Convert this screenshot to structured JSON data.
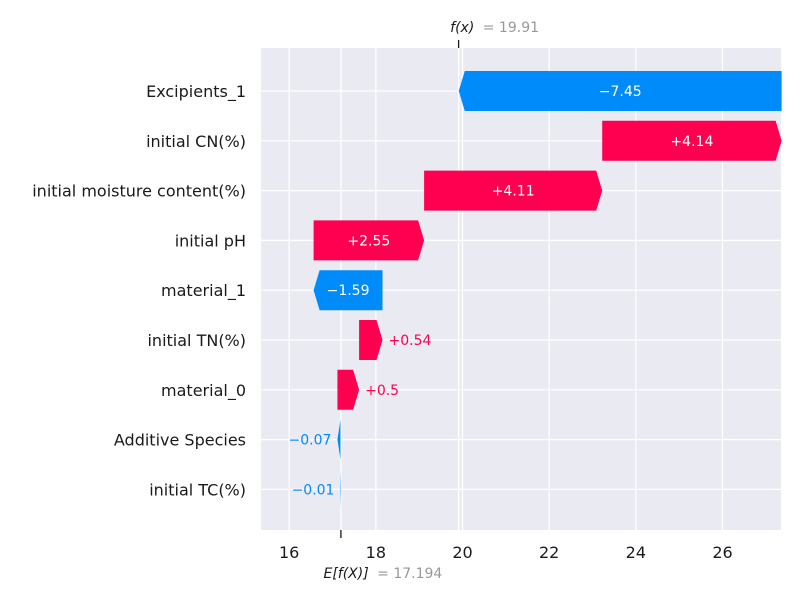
{
  "chart_data": {
    "type": "waterfall",
    "x_ticks": [
      16,
      18,
      20,
      22,
      24,
      26
    ],
    "xlim": [
      15.35,
      27.35
    ],
    "base_value": 17.194,
    "output_value": 19.91,
    "base_label": "E[f(X)]",
    "base_value_text": "= 17.194",
    "output_label": "f(x)",
    "output_value_text": "= 19.91",
    "features": [
      {
        "name": "Excipients_1",
        "contribution": -7.45,
        "label": "−7.45"
      },
      {
        "name": "initial CN(%)",
        "contribution": 4.14,
        "label": "+4.14"
      },
      {
        "name": "initial moisture content(%)",
        "contribution": 4.11,
        "label": "+4.11"
      },
      {
        "name": "initial pH",
        "contribution": 2.55,
        "label": "+2.55"
      },
      {
        "name": "material_1",
        "contribution": -1.59,
        "label": "−1.59"
      },
      {
        "name": "initial TN(%)",
        "contribution": 0.54,
        "label": "+0.54"
      },
      {
        "name": "material_0",
        "contribution": 0.5,
        "label": "+0.5"
      },
      {
        "name": "Additive Species",
        "contribution": -0.07,
        "label": "−0.07"
      },
      {
        "name": "initial TC(%)",
        "contribution": -0.01,
        "label": "−0.01"
      }
    ],
    "colors": {
      "positive": "#ff0051",
      "negative": "#008bfb",
      "background": "#eaeaf2",
      "grid": "#ffffff"
    }
  }
}
